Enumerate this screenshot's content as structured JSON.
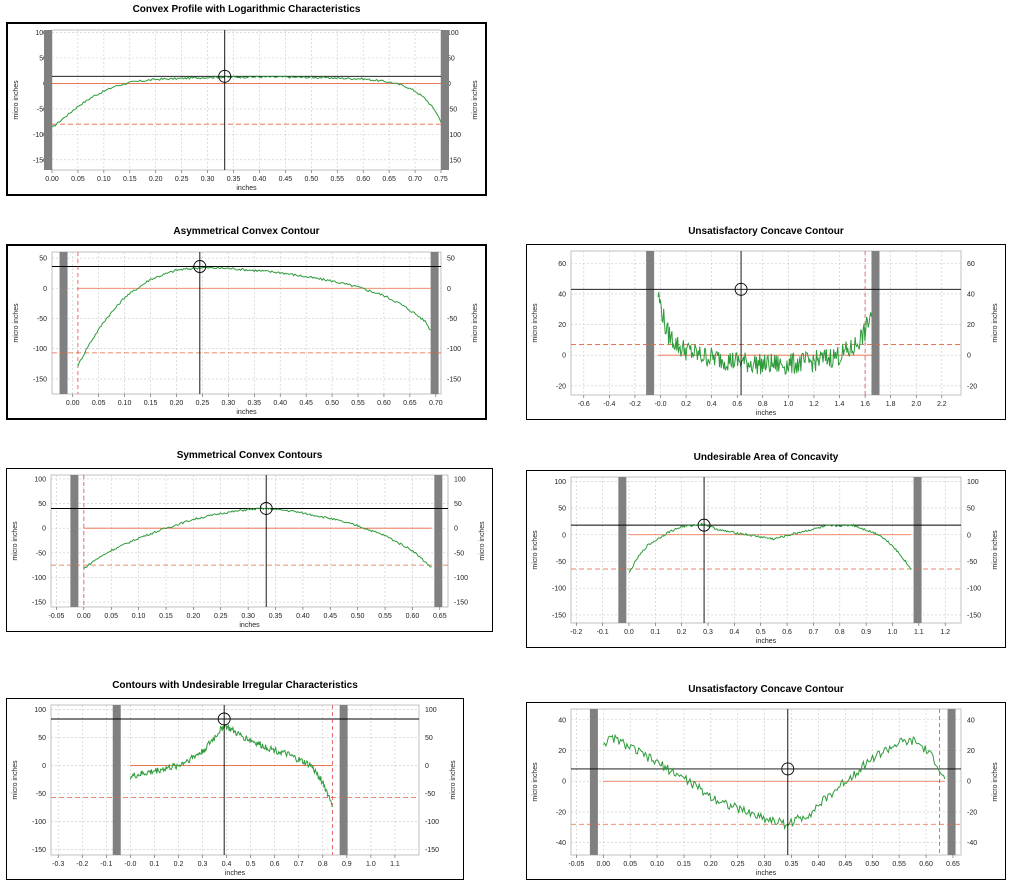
{
  "chart_data": [
    {
      "type": "line",
      "title": "Convex Profile with Logarithmic Characteristics",
      "xlabel": "inches",
      "ylabel": "micro inches",
      "xlim": [
        0.0,
        0.75
      ],
      "ylim": [
        -170,
        105
      ],
      "x_ticks": [
        "0.00",
        "0.05",
        "0.10",
        "0.15",
        "0.20",
        "0.25",
        "0.30",
        "0.35",
        "0.40",
        "0.45",
        "0.50",
        "0.55",
        "0.60",
        "0.65",
        "0.70",
        "0.75"
      ],
      "y_ticks": [
        "100",
        "50",
        "0",
        "-50",
        "-100",
        "-150"
      ],
      "grid": true,
      "profile": {
        "x": [
          0.0,
          0.02,
          0.05,
          0.08,
          0.12,
          0.15,
          0.2,
          0.3,
          0.4,
          0.5,
          0.6,
          0.65,
          0.68,
          0.7,
          0.72,
          0.74,
          0.75
        ],
        "y": [
          -87,
          -70,
          -45,
          -25,
          -6,
          2,
          8,
          12,
          13,
          12,
          9,
          3,
          -5,
          -15,
          -30,
          -55,
          -75
        ],
        "noise": 2
      },
      "cursor_x": 0.333,
      "ref_high": 14,
      "ref_zero": 0,
      "ref_low": -80,
      "mask_left": 0.0,
      "mask_right": 0.75
    },
    {
      "type": "line",
      "title": "Asymmetrical Convex Contour",
      "xlabel": "inches",
      "ylabel": "micro inches",
      "xlim": [
        -0.04,
        0.71
      ],
      "ylim": [
        -175,
        60
      ],
      "x_ticks": [
        "0.00",
        "0.05",
        "0.10",
        "0.15",
        "0.20",
        "0.25",
        "0.30",
        "0.35",
        "0.40",
        "0.45",
        "0.50",
        "0.55",
        "0.60",
        "0.65",
        "0.70"
      ],
      "y_ticks": [
        "50",
        "0",
        "-50",
        "-100",
        "-150"
      ],
      "grid": true,
      "profile": {
        "x": [
          0.01,
          0.03,
          0.06,
          0.1,
          0.15,
          0.2,
          0.245,
          0.3,
          0.4,
          0.5,
          0.55,
          0.6,
          0.63,
          0.66,
          0.68,
          0.69
        ],
        "y": [
          -128,
          -95,
          -55,
          -15,
          15,
          30,
          34,
          33,
          26,
          12,
          2,
          -12,
          -25,
          -42,
          -55,
          -70
        ],
        "noise": 2
      },
      "cursor_x": 0.245,
      "ref_high": 36,
      "ref_zero": 0,
      "ref_low": -107,
      "mask_left": -0.01,
      "mask_right": 0.69,
      "vline_red": 0.01
    },
    {
      "type": "line",
      "title": "Unsatisfactory Concave Contour",
      "xlabel": "inches",
      "ylabel": "micro inches",
      "xlim": [
        -0.7,
        2.35
      ],
      "ylim": [
        -26,
        68
      ],
      "x_ticks": [
        "-0.6",
        "-0.4",
        "-0.2",
        "-0.0",
        "0.2",
        "0.4",
        "0.6",
        "0.8",
        "1.0",
        "1.2",
        "1.4",
        "1.6",
        "1.8",
        "2.0",
        "2.2"
      ],
      "y_ticks": [
        "60",
        "40",
        "20",
        "0",
        "-20"
      ],
      "grid": true,
      "profile": {
        "x": [
          -0.02,
          0.05,
          0.15,
          0.3,
          0.5,
          0.6,
          0.8,
          1.0,
          1.2,
          1.4,
          1.5,
          1.6,
          1.65
        ],
        "y": [
          40,
          15,
          5,
          0,
          -3,
          -4,
          -6,
          -6,
          -4,
          0,
          4,
          15,
          28
        ],
        "noise": 7
      },
      "cursor_x": 0.63,
      "ref_high": 43,
      "ref_zero": 0,
      "ref_low": 7,
      "mask_left": -0.05,
      "mask_right": 1.65,
      "vline_red": 1.6
    },
    {
      "type": "line",
      "title": "Symmetrical Convex Contours",
      "xlabel": "inches",
      "ylabel": "micro inches",
      "xlim": [
        -0.06,
        0.665
      ],
      "ylim": [
        -160,
        108
      ],
      "x_ticks": [
        "-0.05",
        "0.00",
        "0.05",
        "0.10",
        "0.15",
        "0.20",
        "0.25",
        "0.30",
        "0.35",
        "0.40",
        "0.45",
        "0.50",
        "0.55",
        "0.60",
        "0.65"
      ],
      "y_ticks": [
        "100",
        "50",
        "0",
        "-50",
        "-100",
        "-150"
      ],
      "grid": true,
      "profile": {
        "x": [
          0.0,
          0.02,
          0.05,
          0.1,
          0.15,
          0.2,
          0.25,
          0.3,
          0.33,
          0.38,
          0.45,
          0.5,
          0.55,
          0.6,
          0.62,
          0.635
        ],
        "y": [
          -82,
          -65,
          -45,
          -20,
          0,
          18,
          30,
          38,
          40,
          35,
          20,
          5,
          -15,
          -45,
          -65,
          -80
        ],
        "noise": 2
      },
      "cursor_x": 0.333,
      "ref_high": 40,
      "ref_zero": 0,
      "ref_low": -75,
      "mask_left": -0.01,
      "mask_right": 0.64,
      "vline_red": -0.0
    },
    {
      "type": "line",
      "title": "Undesirable Area of Concavity",
      "xlabel": "inches",
      "ylabel": "micro inches",
      "xlim": [
        -0.22,
        1.26
      ],
      "ylim": [
        -165,
        108
      ],
      "x_ticks": [
        "-0.2",
        "-0.1",
        "0.0",
        "0.1",
        "0.2",
        "0.3",
        "0.4",
        "0.5",
        "0.6",
        "0.7",
        "0.8",
        "0.9",
        "1.0",
        "1.1",
        "1.2"
      ],
      "y_ticks": [
        "100",
        "50",
        "0",
        "-50",
        "-100",
        "-150"
      ],
      "grid": true,
      "profile": {
        "x": [
          0.0,
          0.03,
          0.07,
          0.15,
          0.2,
          0.28,
          0.35,
          0.45,
          0.55,
          0.65,
          0.75,
          0.85,
          0.95,
          1.0,
          1.05,
          1.07
        ],
        "y": [
          -72,
          -45,
          -20,
          5,
          15,
          20,
          8,
          0,
          -8,
          5,
          16,
          18,
          0,
          -20,
          -50,
          -65
        ],
        "noise": 2
      },
      "cursor_x": 0.285,
      "ref_high": 18,
      "ref_zero": 0,
      "ref_low": -64,
      "mask_left": -0.01,
      "mask_right": 1.08
    },
    {
      "type": "line",
      "title": "Contours with Undesirable Irregular Characteristics",
      "xlabel": "inches",
      "ylabel": "micro inches",
      "xlim": [
        -0.33,
        1.2
      ],
      "ylim": [
        -160,
        108
      ],
      "x_ticks": [
        "-0.3",
        "-0.2",
        "-0.1",
        "-0.0",
        "0.1",
        "0.2",
        "0.3",
        "0.4",
        "0.5",
        "0.6",
        "0.7",
        "0.8",
        "0.9",
        "1.0",
        "1.1"
      ],
      "y_ticks": [
        "100",
        "50",
        "0",
        "-50",
        "-100",
        "-150"
      ],
      "grid": true,
      "profile": {
        "x": [
          0.0,
          0.05,
          0.1,
          0.2,
          0.3,
          0.35,
          0.39,
          0.45,
          0.55,
          0.65,
          0.75,
          0.8,
          0.84
        ],
        "y": [
          -20,
          -15,
          -10,
          0,
          25,
          50,
          72,
          55,
          35,
          20,
          0,
          -30,
          -70
        ],
        "noise": 6
      },
      "cursor_x": 0.39,
      "ref_high": 83,
      "ref_zero": 0,
      "ref_low": -57,
      "mask_left": -0.04,
      "mask_right": 0.87,
      "vline_red": 0.84
    },
    {
      "type": "line",
      "title": "Unsatisfactory Concave Contour",
      "xlabel": "inches",
      "ylabel": "micro inches",
      "xlim": [
        -0.06,
        0.665
      ],
      "ylim": [
        -48,
        47
      ],
      "x_ticks": [
        "-0.05",
        "0.00",
        "0.05",
        "0.10",
        "0.15",
        "0.20",
        "0.25",
        "0.30",
        "0.35",
        "0.40",
        "0.45",
        "0.50",
        "0.55",
        "0.60",
        "0.65"
      ],
      "y_ticks": [
        "40",
        "20",
        "0",
        "-20",
        "-40"
      ],
      "grid": true,
      "profile": {
        "x": [
          0.0,
          0.02,
          0.05,
          0.1,
          0.15,
          0.2,
          0.25,
          0.3,
          0.34,
          0.38,
          0.45,
          0.5,
          0.55,
          0.58,
          0.6,
          0.62,
          0.635
        ],
        "y": [
          25,
          28,
          22,
          12,
          2,
          -10,
          -18,
          -24,
          -28,
          -22,
          0,
          15,
          25,
          26,
          20,
          12,
          0
        ],
        "noise": 3
      },
      "cursor_x": 0.343,
      "ref_high": 8,
      "ref_zero": 0,
      "ref_low": -28,
      "mask_left": -0.01,
      "mask_right": 0.64,
      "vline_red": 0.625
    }
  ]
}
